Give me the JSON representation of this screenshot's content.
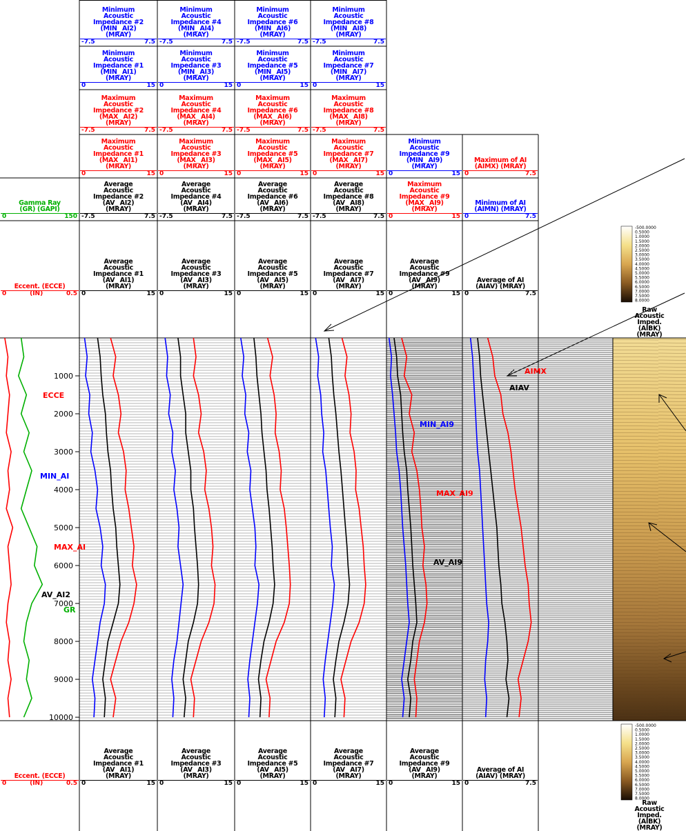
{
  "headers": [
    {
      "label": "Minimum Acoustic Impedance #2 (MIN_ AI2) (MRAY)",
      "color": "#0000ff",
      "scale": [
        "-7.5",
        "7.5"
      ]
    },
    {
      "label": "Minimum Acoustic Impedance #4 (MIN_ AI4) (MRAY)",
      "color": "#0000ff",
      "scale": [
        "-7.5",
        "7.5"
      ]
    },
    {
      "label": "Minimum Acoustic Impedance #6 (MIN_ AI6) (MRAY)",
      "color": "#0000ff",
      "scale": [
        "-7.5",
        "7.5"
      ]
    },
    {
      "label": "Minimum Acoustic Impedance #8 (MIN_ AI8) (MRAY)",
      "color": "#0000ff",
      "scale": [
        "-7.5",
        "7.5"
      ]
    },
    {
      "label": "Minimum Acoustic Impedance #1 (MIN_ AI1) (MRAY)",
      "color": "#0000ff",
      "scale": [
        "0",
        "15"
      ]
    },
    {
      "label": "Minimum Acoustic Impedance #3 (MIN_ AI3) (MRAY)",
      "color": "#0000ff",
      "scale": [
        "0",
        "15"
      ]
    },
    {
      "label": "Minimum Acoustic Impedance #5 (MIN_ AI5) (MRAY)",
      "color": "#0000ff",
      "scale": [
        "0",
        "15"
      ]
    },
    {
      "label": "Minimum Acoustic Impedance #7 (MIN_ AI7) (MRAY)",
      "color": "#0000ff",
      "scale": [
        "0",
        "15"
      ]
    },
    {
      "label": "Maximum Acoustic Impedance #2 (MAX_ AI2) (MRAY)",
      "color": "#ff0000",
      "scale": [
        "-7.5",
        "7.5"
      ]
    },
    {
      "label": "Maximum Acoustic Impedance #4 (MAX_ AI4) (MRAY)",
      "color": "#ff0000",
      "scale": [
        "-7.5",
        "7.5"
      ]
    },
    {
      "label": "Maximum Acoustic Impedance #6 (MAX_ AI6) (MRAY)",
      "color": "#ff0000",
      "scale": [
        "-7.5",
        "7.5"
      ]
    },
    {
      "label": "Maximum Acoustic Impedance #8 (MAX_ AI8) (MRAY)",
      "color": "#ff0000",
      "scale": [
        "-7.5",
        "7.5"
      ]
    },
    {
      "label": "Maximum Acoustic Impedance #1 (MAX_ AI1) (MRAY)",
      "color": "#ff0000",
      "scale": [
        "0",
        "15"
      ]
    },
    {
      "label": "Maximum Acoustic Impedance #3 (MAX_ AI3) (MRAY)",
      "color": "#ff0000",
      "scale": [
        "0",
        "15"
      ]
    },
    {
      "label": "Maximum Acoustic Impedance #5 (MAX_ AI5) (MRAY)",
      "color": "#ff0000",
      "scale": [
        "0",
        "15"
      ]
    },
    {
      "label": "Maximum Acoustic Impedance #7 (MAX_ AI7) (MRAY)",
      "color": "#ff0000",
      "scale": [
        "0",
        "15"
      ]
    },
    {
      "label": "Minimum Acoustic Impedance #9 (MIN_ AI9) (MRAY)",
      "color": "#0000ff",
      "scale": [
        "0",
        "15"
      ]
    },
    {
      "label": "Maximum of AI (AIMX) (MRAY)",
      "color": "#ff0000",
      "scale": [
        "0",
        "7.5"
      ]
    },
    {
      "label": "Gamma Ray (GR) (GAPI)",
      "color": "#00b000",
      "scale": [
        "0",
        "150"
      ]
    },
    {
      "label": "Average Acoustic Impedance #2 (AV_ AI2) (MRAY)",
      "color": "#000000",
      "scale": [
        "-7.5",
        "7.5"
      ]
    },
    {
      "label": "Average Acoustic Impedance #4 (AV_ AI4) (MRAY)",
      "color": "#000000",
      "scale": [
        "-7.5",
        "7.5"
      ]
    },
    {
      "label": "Average Acoustic Impedance #6 (AV_ AI6) (MRAY)",
      "color": "#000000",
      "scale": [
        "-7.5",
        "7.5"
      ]
    },
    {
      "label": "Average Acoustic Impedance #8 (AV_ AI8) (MRAY)",
      "color": "#000000",
      "scale": [
        "-7.5",
        "7.5"
      ]
    },
    {
      "label": "Maximum Acoustic Impedance #9 (MAX_ AI9) (MRAY)",
      "color": "#ff0000",
      "scale": [
        "0",
        "15"
      ]
    },
    {
      "label": "Minimum of AI (AIMN) (MRAY)",
      "color": "#0000ff",
      "scale": [
        "0",
        "7.5"
      ]
    },
    {
      "label": "Eccent. (ECCE)",
      "color": "#ff0000",
      "scale": [
        "0",
        "0.5"
      ],
      "unit": "(IN)"
    },
    {
      "label": "Average Acoustic Impedance #1 (AV_ AI1) (MRAY)",
      "color": "#000000",
      "scale": [
        "0",
        "15"
      ]
    },
    {
      "label": "Average Acoustic Impedance #3 (AV_ AI3) (MRAY)",
      "color": "#000000",
      "scale": [
        "0",
        "15"
      ]
    },
    {
      "label": "Average Acoustic Impedance #5 (AV_ AI5) (MRAY)",
      "color": "#000000",
      "scale": [
        "0",
        "15"
      ]
    },
    {
      "label": "Average Acoustic Impedance #7 (AV_ AI7) (MRAY)",
      "color": "#000000",
      "scale": [
        "0",
        "15"
      ]
    },
    {
      "label": "Average Acoustic Impedance #9 (AV_ AI9) (MRAY)",
      "color": "#000000",
      "scale": [
        "0",
        "15"
      ]
    },
    {
      "label": "Average of AI (AIAV) (MRAY)",
      "color": "#000000",
      "scale": [
        "0",
        "7.5"
      ]
    }
  ],
  "colorbar": {
    "labels": [
      "-500.0000",
      "0.5000",
      "1.0000",
      "1.5000",
      "2.0000",
      "2.5000",
      "3.0000",
      "3.5000",
      "4.0000",
      "4.5000",
      "5.0000",
      "5.5000",
      "6.0000",
      "6.5000",
      "7.0000",
      "7.5000",
      "8.0000"
    ],
    "title": "Raw Acoustic Imped. (AIBK) (MRAY)"
  },
  "footer": {
    "cells": [
      {
        "label": "Eccent. (ECCE)",
        "color": "#ff0000",
        "scale": [
          "0",
          "0.5"
        ],
        "unit": "(IN)"
      },
      {
        "label": "Average Acoustic Impedance #1 (AV_ AI1) (MRAY)",
        "color": "#000000",
        "scale": [
          "0",
          "15"
        ]
      },
      {
        "label": "Average Acoustic Impedance #3 (AV_ AI3) (MRAY)",
        "color": "#000000",
        "scale": [
          "0",
          "15"
        ]
      },
      {
        "label": "Average Acoustic Impedance #5 (AV_ AI5) (MRAY)",
        "color": "#000000",
        "scale": [
          "0",
          "15"
        ]
      },
      {
        "label": "Average Acoustic Impedance #7 (AV_ AI7) (MRAY)",
        "color": "#000000",
        "scale": [
          "0",
          "15"
        ]
      },
      {
        "label": "Average Acoustic Impedance #9 (AV_ AI9) (MRAY)",
        "color": "#000000",
        "scale": [
          "0",
          "15"
        ]
      },
      {
        "label": "Average of AI (AIAV) (MRAY)",
        "color": "#000000",
        "scale": [
          "0",
          "7.5"
        ]
      }
    ],
    "colorbar": {
      "labels": [
        "-500.0000",
        "0.5000",
        "1.0000",
        "1.5000",
        "2.0000",
        "2.5000",
        "3.0000",
        "3.5000",
        "4.0000",
        "4.5000",
        "5.0000",
        "5.5000",
        "6.0000",
        "6.5000",
        "7.0000",
        "7.5000",
        "8.0000"
      ],
      "title": "Raw Acoustic Imped. (AIBK) (MRAY)"
    }
  },
  "log": {
    "ylim": [
      0,
      10090
    ],
    "depth_ticks": [
      1000,
      2000,
      3000,
      4000,
      5000,
      6000,
      7000,
      8000,
      9000,
      10000
    ],
    "depths": [
      0,
      500,
      1000,
      1500,
      2000,
      2500,
      3000,
      3500,
      4000,
      4500,
      5000,
      5500,
      6000,
      6500,
      7000,
      7500,
      8000,
      8500,
      9000,
      9500,
      10000
    ],
    "tracks": [
      {
        "curves": [
          {
            "color": "#00b000",
            "xlim": [
              0,
              150
            ],
            "values": [
              40,
              45,
              35,
              50,
              40,
              55,
              45,
              60,
              50,
              40,
              55,
              70,
              65,
              80,
              60,
              50,
              45,
              55,
              50,
              60,
              45
            ]
          },
          {
            "color": "#ff0000",
            "xlim": [
              0,
              0.5
            ],
            "values": [
              0.03,
              0.05,
              0.04,
              0.06,
              0.05,
              0.04,
              0.07,
              0.05,
              0.06,
              0.04,
              0.08,
              0.05,
              0.06,
              0.07,
              0.05,
              0.04,
              0.06,
              0.05,
              0.07,
              0.05,
              0.06
            ]
          }
        ]
      },
      {
        "curves": [
          {
            "color": "#0000ff",
            "xlim": [
              0,
              15
            ],
            "values": [
              1,
              1.5,
              1.2,
              2,
              1.8,
              2.5,
              2.2,
              3,
              3.5,
              3.2,
              4,
              4.5,
              4.2,
              5,
              4.8,
              4,
              3.5,
              3,
              2.5,
              3,
              2.8
            ]
          },
          {
            "color": "#ff0000",
            "xlim": [
              0,
              15
            ],
            "values": [
              6,
              7,
              6.5,
              7.5,
              8,
              7.5,
              8.5,
              9,
              8.8,
              9.5,
              10,
              10.5,
              10.2,
              11,
              10.5,
              9.5,
              8,
              7,
              6,
              7,
              6.5
            ]
          },
          {
            "color": "#000000",
            "xlim": [
              0,
              15
            ],
            "values": [
              3.5,
              4,
              4.2,
              4.5,
              5,
              5.2,
              5.5,
              6,
              6.2,
              6.5,
              7,
              7.2,
              7.5,
              7.8,
              7.5,
              6.5,
              5.5,
              5,
              4.5,
              5,
              4.8
            ]
          }
        ]
      },
      {
        "curves": [
          {
            "color": "#0000ff",
            "xlim": [
              0,
              15
            ],
            "values": [
              1.5,
              2,
              1.8,
              2.5,
              2.2,
              3,
              2.8,
              3.5,
              3.2,
              3.8,
              4.2,
              4,
              4.5,
              5,
              4.6,
              4.2,
              3.8,
              3.2,
              2.8,
              3.2,
              3
            ]
          },
          {
            "color": "#ff0000",
            "xlim": [
              0,
              15
            ],
            "values": [
              7,
              7.5,
              7,
              8,
              8.5,
              8,
              9,
              9.5,
              9.2,
              10,
              10.5,
              10.8,
              10.5,
              11.2,
              11,
              10,
              8.5,
              7.5,
              6.5,
              7.2,
              7
            ]
          },
          {
            "color": "#000000",
            "xlim": [
              0,
              15
            ],
            "values": [
              4,
              4.5,
              4.5,
              5,
              5.5,
              5.5,
              6,
              6.5,
              6.5,
              7,
              7.2,
              7.5,
              7.8,
              8,
              7.8,
              7,
              6,
              5.5,
              5,
              5.5,
              5.2
            ]
          }
        ]
      },
      {
        "curves": [
          {
            "color": "#0000ff",
            "xlim": [
              0,
              15
            ],
            "values": [
              1.2,
              1.8,
              1.5,
              2.2,
              2,
              2.8,
              2.5,
              3.2,
              3,
              3.5,
              4,
              4.2,
              4,
              4.8,
              4.5,
              4,
              3.5,
              3,
              2.6,
              3,
              2.8
            ]
          },
          {
            "color": "#ff0000",
            "xlim": [
              0,
              15
            ],
            "values": [
              6.5,
              7.5,
              7,
              7.8,
              8.2,
              8,
              8.8,
              9.2,
              9,
              9.8,
              10.2,
              10.5,
              10.8,
              11,
              10.8,
              9.8,
              8.2,
              7.2,
              6.2,
              7,
              6.8
            ]
          },
          {
            "color": "#000000",
            "xlim": [
              0,
              15
            ],
            "values": [
              3.8,
              4.2,
              4.4,
              4.8,
              5.2,
              5.4,
              5.8,
              6.2,
              6.4,
              6.8,
              7.1,
              7.4,
              7.6,
              7.9,
              7.6,
              6.8,
              5.8,
              5.2,
              4.7,
              5.2,
              5
            ]
          }
        ]
      },
      {
        "curves": [
          {
            "color": "#0000ff",
            "xlim": [
              0,
              15
            ],
            "values": [
              1,
              1.6,
              1.4,
              2,
              2.2,
              2.6,
              2.4,
              3,
              3.3,
              3.6,
              3.9,
              4.3,
              4.1,
              4.7,
              4.4,
              3.9,
              3.4,
              2.9,
              2.5,
              2.9,
              2.7
            ]
          },
          {
            "color": "#ff0000",
            "xlim": [
              0,
              15
            ],
            "values": [
              6.2,
              7.2,
              6.8,
              7.6,
              8,
              7.8,
              8.6,
              9,
              8.9,
              9.6,
              10,
              10.4,
              10.6,
              10.9,
              10.6,
              9.6,
              8,
              7,
              6,
              6.8,
              6.6
            ]
          },
          {
            "color": "#000000",
            "xlim": [
              0,
              15
            ],
            "values": [
              3.6,
              4.1,
              4.3,
              4.6,
              5,
              5.3,
              5.6,
              6,
              6.3,
              6.6,
              6.9,
              7.2,
              7.4,
              7.7,
              7.4,
              6.6,
              5.6,
              5,
              4.5,
              5,
              4.8
            ]
          }
        ]
      },
      {
        "curves": [
          {
            "color": "#0000ff",
            "xlim": [
              0,
              15
            ],
            "values": [
              0.5,
              1,
              0.8,
              1.2,
              1.5,
              1.8,
              2,
              2.5,
              2.8,
              3,
              3.2,
              3.5,
              3.8,
              4,
              4.2,
              4.5,
              4,
              3.5,
              3,
              3.5,
              3.2
            ]
          },
          {
            "color": "#ff0000",
            "xlim": [
              0,
              15
            ],
            "values": [
              3,
              4,
              3.5,
              5,
              4.5,
              5.5,
              5,
              6,
              6.5,
              6.8,
              7,
              7.5,
              7.2,
              7.8,
              8,
              7.5,
              6.5,
              6,
              5.5,
              6,
              5.8
            ]
          },
          {
            "color": "#000000",
            "xlim": [
              0,
              15
            ],
            "values": [
              1.5,
              2,
              2.2,
              2.8,
              3,
              3.2,
              3.5,
              4,
              4.2,
              4.5,
              4.8,
              5,
              5.2,
              5.5,
              5.8,
              6,
              5.2,
              4.8,
              4.2,
              4.8,
              4.5
            ]
          }
        ]
      },
      {
        "curves": [
          {
            "color": "#0000ff",
            "xlim": [
              0,
              7.5
            ],
            "values": [
              0.8,
              1,
              1.1,
              1.2,
              1.3,
              1.4,
              1.5,
              1.7,
              1.8,
              1.9,
              2,
              2.1,
              2.2,
              2.3,
              2.4,
              2.6,
              2.5,
              2.3,
              2.2,
              2.4,
              2.3
            ]
          },
          {
            "color": "#000000",
            "xlim": [
              0,
              7.5
            ],
            "values": [
              1.5,
              1.7,
              1.8,
              2,
              2.2,
              2.4,
              2.6,
              2.8,
              3,
              3.2,
              3.4,
              3.5,
              3.6,
              3.8,
              3.9,
              4.2,
              4.4,
              4.5,
              4.3,
              4.6,
              4.4
            ]
          },
          {
            "color": "#ff0000",
            "xlim": [
              0,
              7.5
            ],
            "values": [
              2.5,
              3,
              3.2,
              3.8,
              4,
              4.5,
              4.8,
              5,
              5.2,
              5.5,
              5.8,
              6,
              6.2,
              6.5,
              6.6,
              6.8,
              6.5,
              6,
              5.5,
              5.8,
              5.6
            ]
          }
        ]
      }
    ],
    "annotations": [
      {
        "text": "AIMX",
        "color": "#ff0000"
      },
      {
        "text": "AIAV",
        "color": "#000000"
      },
      {
        "text": "ECCE",
        "color": "#ff0000"
      },
      {
        "text": "MIN_AI9",
        "color": "#0000ff"
      },
      {
        "text": "MAX_AI9",
        "color": "#ff0000"
      },
      {
        "text": "MIN_AI",
        "color": "#0000ff"
      },
      {
        "text": "MAX_AI",
        "color": "#ff0000"
      },
      {
        "text": "AV_AI9",
        "color": "#000000"
      },
      {
        "text": "AV_AI2",
        "color": "#000000"
      },
      {
        "text": "GR",
        "color": "#00b000"
      }
    ]
  }
}
